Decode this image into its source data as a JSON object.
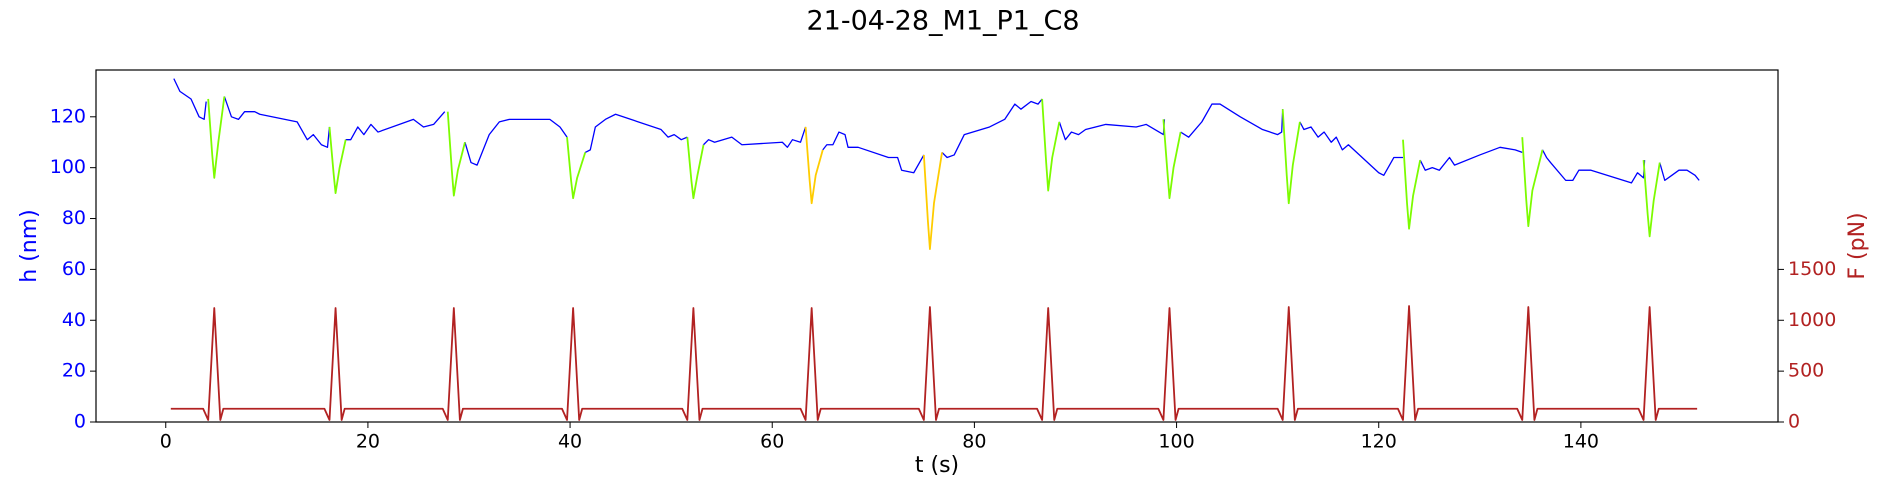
{
  "chart_data": {
    "type": "line",
    "title": "21-04-28_M1_P1_C8",
    "x_label": "t (s)",
    "y_label": "h (nm)",
    "y2_label": "F (pN)",
    "y_label_color": "#0000ff",
    "y2_label_color": "#b22222",
    "xlim": [
      -6.9,
      159.5
    ],
    "ylim": [
      0,
      138.4
    ],
    "y2lim": [
      0,
      3460
    ],
    "xticks": [
      0,
      20,
      40,
      60,
      80,
      100,
      120,
      140
    ],
    "yticks": [
      0,
      20,
      40,
      60,
      80,
      100,
      120
    ],
    "y2ticks": [
      0,
      500,
      1000,
      1500
    ],
    "series": [
      {
        "color": "#0000ff",
        "axis": "y",
        "x": [
          0.8,
          1.4,
          2.5,
          3.3,
          3.8,
          4.0,
          null,
          5.8,
          6.5,
          7.2,
          7.8,
          8.8,
          9.3,
          13,
          14,
          14.6,
          15.4,
          16.0,
          16.2,
          null,
          17.8,
          18.3,
          19,
          19.6,
          20.3,
          21,
          24.5,
          25.5,
          26.5,
          27.6,
          null,
          29.6,
          30.2,
          30.8,
          32,
          33,
          34,
          38,
          39,
          39.7,
          null,
          41.5,
          42,
          42.5,
          43.5,
          44.5,
          49,
          49.7,
          50.3,
          51,
          51.6,
          null,
          53.2,
          53.7,
          54.3,
          56,
          57,
          61,
          61.5,
          62,
          62.8,
          63.3,
          null,
          65,
          65.4,
          66,
          66.6,
          67.2,
          67.5,
          68.5,
          71.5,
          72.4,
          72.8,
          74,
          75,
          null,
          76.8,
          77.3,
          78,
          79,
          81.5,
          83,
          84,
          84.6,
          85.6,
          86.3,
          86.7,
          null,
          88.4,
          89,
          89.6,
          90.3,
          91,
          93,
          96,
          97,
          98.7,
          98.8,
          null,
          100.4,
          101.2,
          102.5,
          103.5,
          104.3,
          106.3,
          108.5,
          110,
          110.4,
          110.5,
          null,
          112.2,
          112.6,
          113.3,
          114,
          114.6,
          115.3,
          115.8,
          116.4,
          117,
          120,
          120.5,
          121.5,
          122.4,
          null,
          124.1,
          124.6,
          125.3,
          126,
          127,
          127.5,
          130,
          132,
          133.5,
          134.2,
          null,
          136.2,
          136.6,
          137,
          138.5,
          139.2,
          139.8,
          141,
          145,
          145.6,
          146.2,
          146.3,
          null,
          147.8,
          148.3,
          149,
          149.7,
          150.5,
          151.3,
          151.7
        ],
        "values": [
          135,
          130,
          127,
          120,
          119,
          126,
          null,
          128,
          120,
          119,
          122,
          122,
          121,
          118,
          111,
          113,
          109,
          108,
          116,
          null,
          111,
          111,
          116,
          113,
          117,
          114,
          119,
          116,
          117,
          122,
          null,
          110,
          102,
          101,
          113,
          118,
          119,
          119,
          116,
          112,
          null,
          106,
          107,
          116,
          119,
          121,
          115,
          112,
          113,
          111,
          112,
          null,
          109,
          111,
          110,
          112,
          109,
          110,
          108,
          111,
          110,
          116,
          null,
          107,
          109,
          109,
          114,
          113,
          108,
          108,
          104,
          104,
          99,
          98,
          105,
          null,
          106,
          104,
          105,
          113,
          116,
          119,
          125,
          123,
          126,
          125,
          127,
          null,
          118,
          111,
          114,
          113,
          115,
          117,
          116,
          117,
          113,
          119,
          null,
          114,
          112,
          118,
          125,
          125,
          120,
          115,
          113,
          114,
          123,
          null,
          118,
          115,
          116,
          112,
          114,
          110,
          112,
          107,
          109,
          98,
          97,
          104,
          104,
          null,
          103,
          99,
          100,
          99,
          104,
          101,
          105,
          108,
          107,
          106,
          null,
          107,
          104,
          102,
          95,
          95,
          99,
          99,
          94,
          98,
          96,
          103,
          null,
          102,
          95,
          97,
          99,
          99,
          97,
          95
        ]
      },
      {
        "color": "#7cfc00",
        "axis": "y",
        "x": [
          4.2,
          4.6,
          4.8,
          5.2,
          5.8,
          null,
          16.2,
          16.6,
          16.8,
          17.2,
          17.8,
          null,
          27.9,
          28.3,
          28.5,
          28.9,
          29.6,
          null,
          39.7,
          40.1,
          40.3,
          40.7,
          41.5,
          null,
          51.6,
          52.0,
          52.2,
          52.6,
          53.2,
          null,
          86.7,
          87.1,
          87.3,
          87.7,
          88.4,
          null,
          98.7,
          99.1,
          99.3,
          99.7,
          100.4,
          null,
          110.5,
          110.9,
          111.1,
          111.5,
          112.2,
          null,
          122.4,
          122.8,
          123,
          123.4,
          124.1,
          null,
          134.2,
          134.6,
          134.8,
          135.2,
          136.2,
          null,
          146.2,
          146.6,
          146.8,
          147.2,
          147.8
        ],
        "values": [
          127,
          105,
          96,
          110,
          128,
          null,
          116,
          98,
          90,
          100,
          111,
          null,
          122,
          99,
          89,
          99,
          110,
          null,
          112,
          95,
          88,
          96,
          106,
          null,
          112,
          95,
          88,
          97,
          109,
          null,
          127,
          102,
          91,
          104,
          118,
          null,
          119,
          98,
          88,
          100,
          114,
          null,
          123,
          97,
          86,
          101,
          118,
          null,
          111,
          86,
          76,
          89,
          103,
          null,
          112,
          87,
          77,
          91,
          107,
          null,
          103,
          82,
          73,
          87,
          102
        ]
      },
      {
        "color": "#ffcc00",
        "axis": "y",
        "x": [
          63.3,
          63.7,
          63.9,
          64.3,
          65,
          null,
          75,
          75.4,
          75.6,
          76,
          76.8
        ],
        "values": [
          116,
          95,
          86,
          97,
          107,
          null,
          105,
          79,
          68,
          86,
          106
        ]
      },
      {
        "color": "#b22222",
        "axis": "y2",
        "x": [
          0.5,
          3.7,
          4.2,
          4.8,
          5.4,
          5.7,
          15.7,
          16.2,
          16.8,
          17.4,
          17.7,
          27.4,
          27.9,
          28.5,
          29.1,
          29.4,
          39.2,
          39.7,
          40.3,
          40.9,
          41.2,
          51.1,
          51.6,
          52.2,
          52.8,
          53.1,
          62.8,
          63.3,
          63.9,
          64.5,
          64.8,
          74.5,
          75,
          75.6,
          76.2,
          76.5,
          86.2,
          86.7,
          87.3,
          87.9,
          88.2,
          98.2,
          98.7,
          99.3,
          99.9,
          100.2,
          110,
          110.5,
          111.1,
          111.7,
          112,
          121.9,
          122.4,
          123,
          123.6,
          123.9,
          133.7,
          134.2,
          134.8,
          135.4,
          135.7,
          145.7,
          146.2,
          146.8,
          147.4,
          147.7,
          151.5
        ],
        "values": [
          130,
          130,
          20,
          1120,
          20,
          130,
          130,
          20,
          1120,
          20,
          130,
          130,
          20,
          1120,
          20,
          130,
          130,
          20,
          1120,
          20,
          130,
          130,
          20,
          1120,
          20,
          130,
          130,
          20,
          1120,
          20,
          130,
          130,
          20,
          1130,
          20,
          130,
          130,
          20,
          1120,
          20,
          130,
          130,
          20,
          1120,
          20,
          130,
          130,
          20,
          1130,
          20,
          130,
          130,
          20,
          1140,
          20,
          130,
          130,
          20,
          1130,
          20,
          130,
          130,
          20,
          1130,
          20,
          130,
          130
        ]
      }
    ]
  }
}
